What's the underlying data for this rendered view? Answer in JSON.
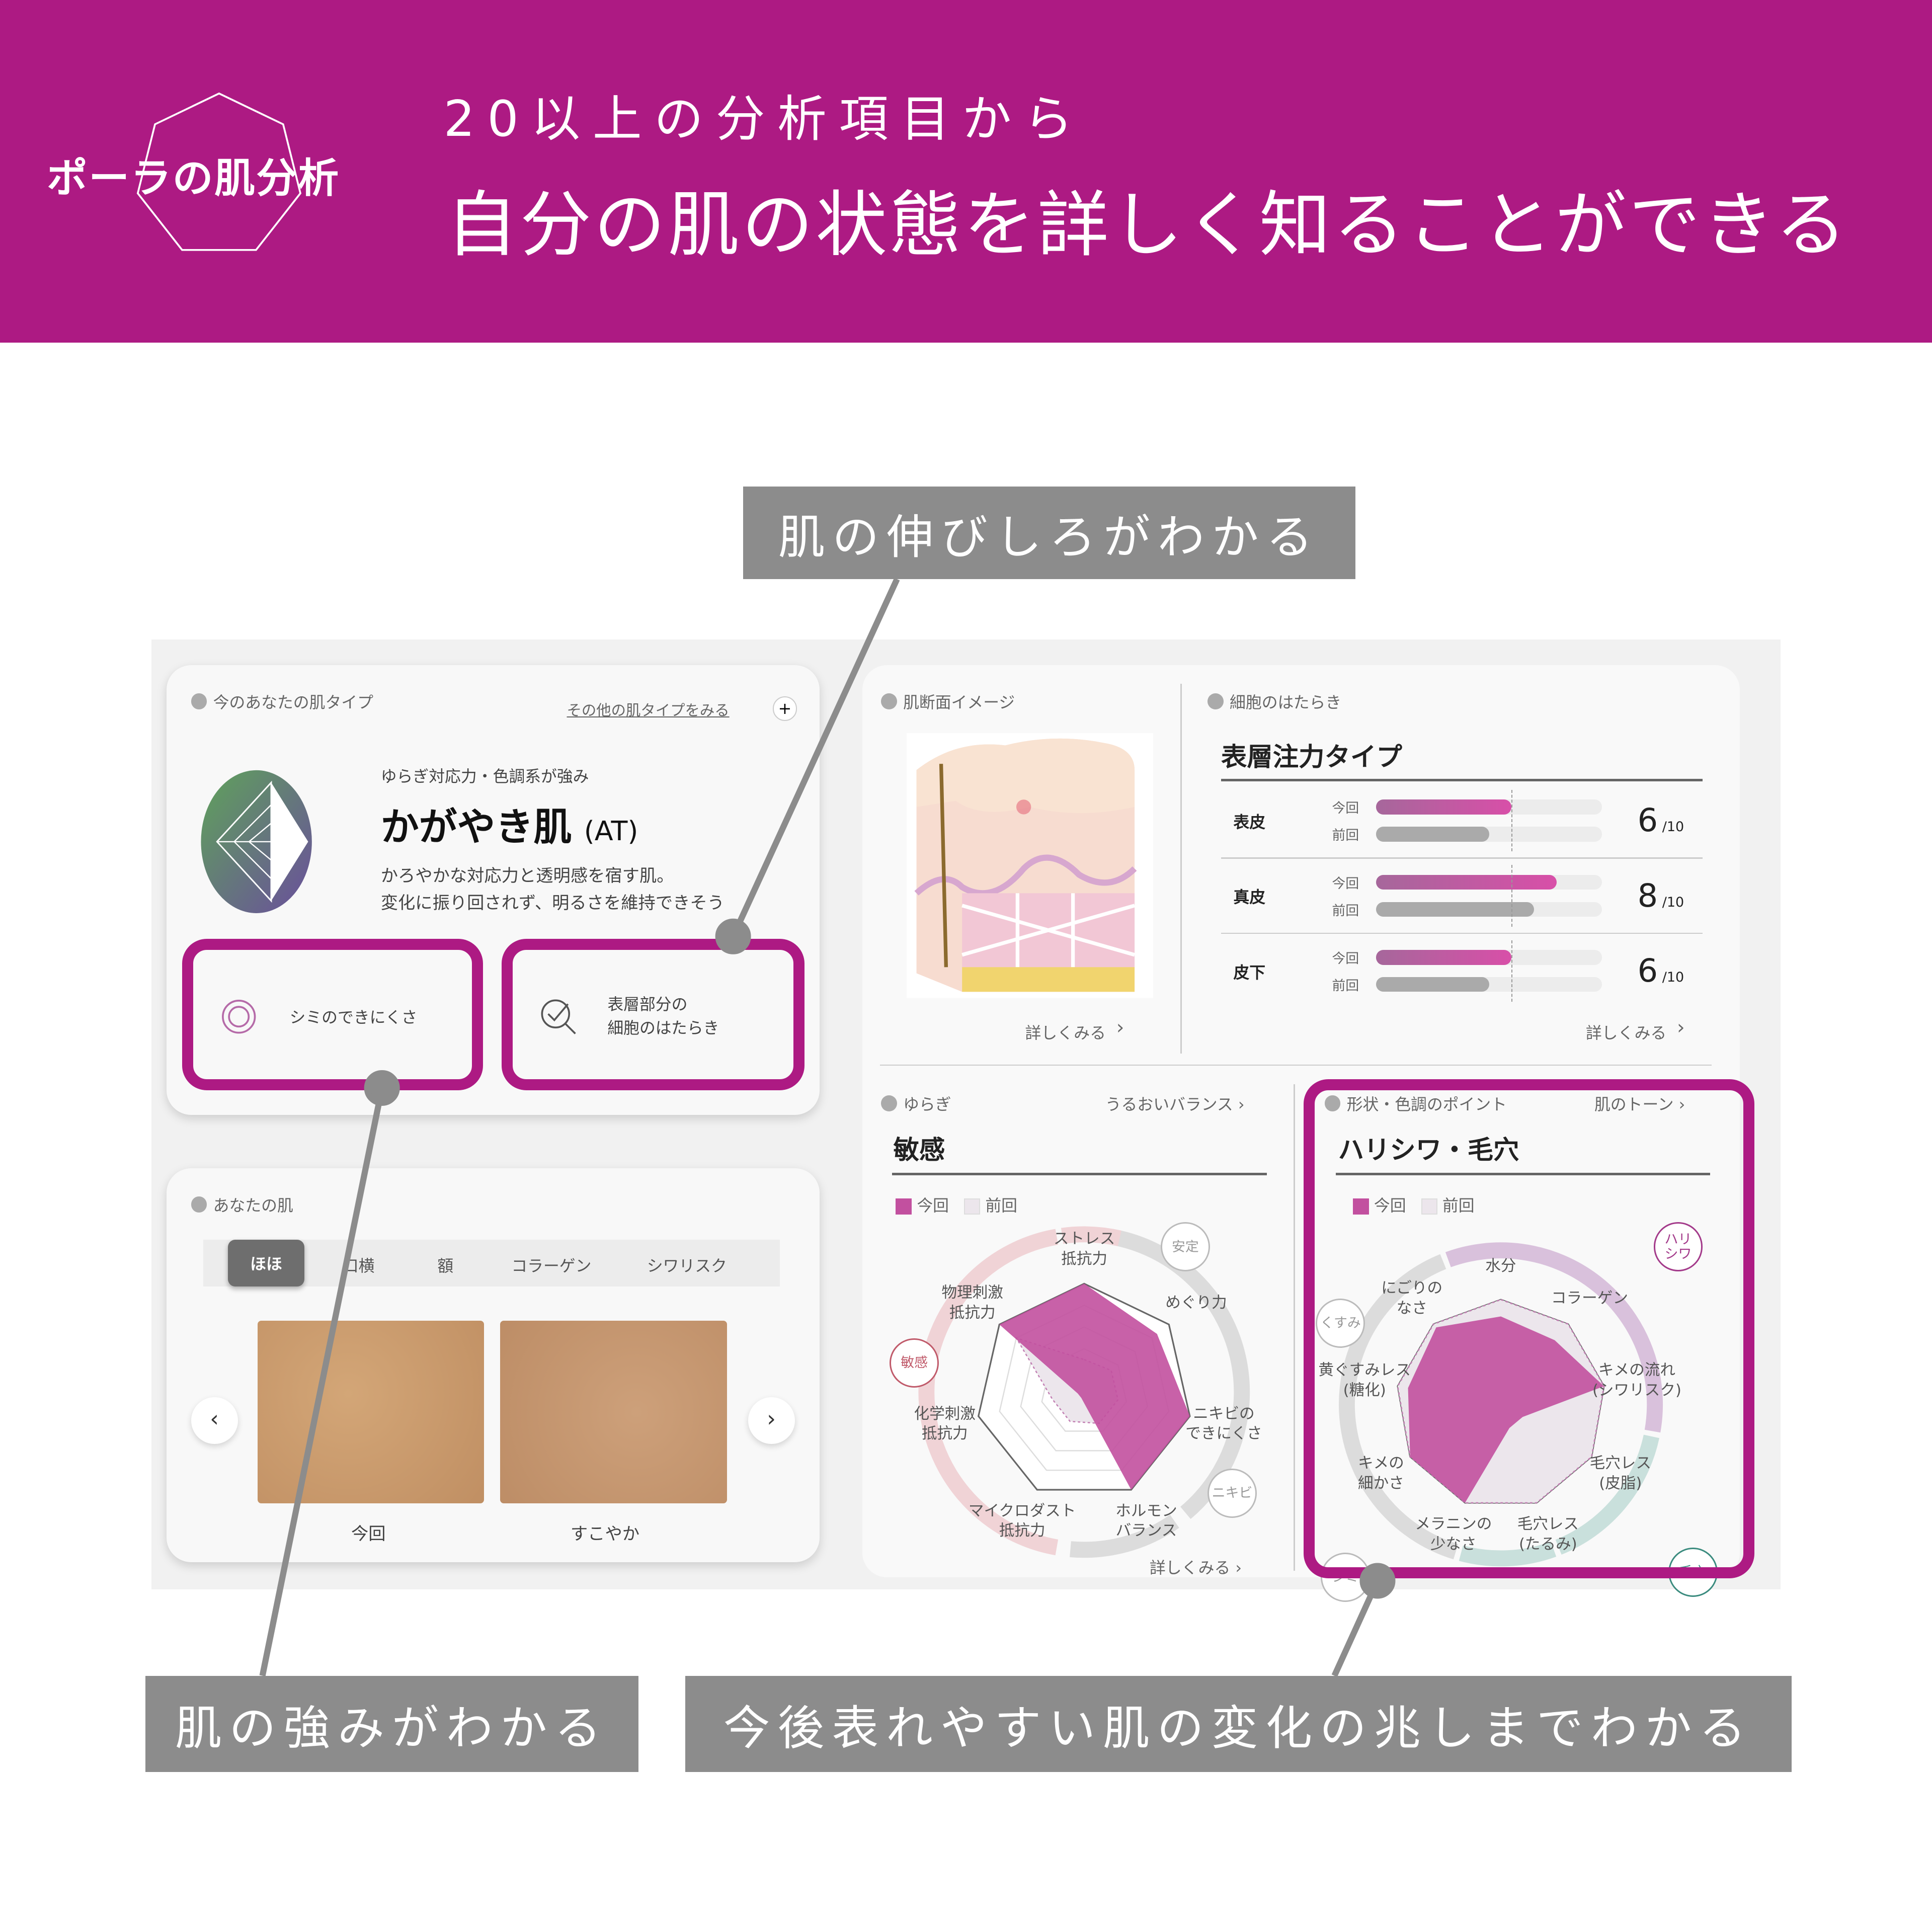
{
  "header": {
    "logo_text": "ポーラの肌分析",
    "subtitle": "20以上の分析項目から",
    "title": "自分の肌の状態を詳しく知ることができる",
    "color": "#ad1a83"
  },
  "callouts": {
    "top": "肌の伸びしろがわかる",
    "bottom_left": "肌の強みがわかる",
    "bottom_right": "今後表れやすい肌の変化の兆しまでわかる"
  },
  "skin_type": {
    "section": "今のあなたの肌タイプ",
    "other_link": "その他の肌タイプをみる",
    "tagline": "ゆらぎ対応力・色調系が強み",
    "name": "かがやき肌",
    "code": "(AT)",
    "desc1": "かろやかな対応力と透明感を宿す肌。",
    "desc2": "変化に振り回されず、明るさを維持できそう",
    "strength1": "シミのできにくさ",
    "strength2a": "表層部分の",
    "strength2b": "細胞のはたらき"
  },
  "your_skin": {
    "section": "あなたの肌",
    "tabs": [
      "ほほ",
      "口横",
      "額",
      "コラーゲン",
      "シワリスク"
    ],
    "active_tab": 0,
    "photo1": "今回",
    "photo2": "すこやか"
  },
  "cross_section": {
    "section": "肌断面イメージ",
    "more": "詳しくみる"
  },
  "cells": {
    "section": "細胞のはたらき",
    "type": "表層注力タイプ",
    "current": "今回",
    "previous": "前回",
    "max_label": "/10",
    "more": "詳しくみる",
    "rows": [
      {
        "label": "表皮",
        "score": "6",
        "current": 6,
        "previous": 5
      },
      {
        "label": "真皮",
        "score": "8",
        "current": 8,
        "previous": 7
      },
      {
        "label": "皮下",
        "score": "6",
        "current": 6,
        "previous": 5
      }
    ]
  },
  "yuragi": {
    "section": "ゆらぎ",
    "link": "うるおいバランス",
    "title": "敏感",
    "legend_current": "今回",
    "legend_previous": "前回",
    "more": "詳しくみる",
    "badges": [
      "安定",
      "敏感",
      "ニキビ"
    ],
    "axes": [
      "ストレス\n抵抗力",
      "めぐり力",
      "ニキビの\nできにくさ",
      "ホルモン\nバランス",
      "マイクロダスト\n抵抗力",
      "化学刺激\n抵抗力",
      "物理刺激\n抵抗力"
    ],
    "current": [
      5,
      4.3,
      5,
      5,
      0.3,
      0.3,
      5
    ],
    "previous": [
      1.5,
      1.6,
      1.6,
      1.6,
      1.5,
      1.5,
      4
    ]
  },
  "shape": {
    "section": "形状・色調のポイント",
    "link": "肌のトーン",
    "title": "ハリシワ・毛穴",
    "legend_current": "今回",
    "legend_previous": "前回",
    "badges": [
      "ハリ\nシワ",
      "くすみ",
      "シミ",
      "毛穴"
    ],
    "axes": [
      "水分",
      "コラーゲン",
      "キメの流れ\n(シワリスク)",
      "毛穴レス\n(皮脂)",
      "毛穴レス\n(たるみ)",
      "メラニンの\n少なさ",
      "キメの\n細かさ",
      "黄ぐすみレス\n(糖化)",
      "にごりの\nなさ"
    ],
    "current": [
      4.2,
      4,
      5,
      1.2,
      1.2,
      5,
      5,
      4.5,
      4.8
    ],
    "previous": [
      5,
      5,
      5,
      5,
      5,
      5,
      5,
      5,
      5
    ]
  },
  "colors": {
    "current": "#c2509f",
    "previous": "#ece6ec",
    "accent": "#ad1a83",
    "callout": "#8c8c8c"
  }
}
